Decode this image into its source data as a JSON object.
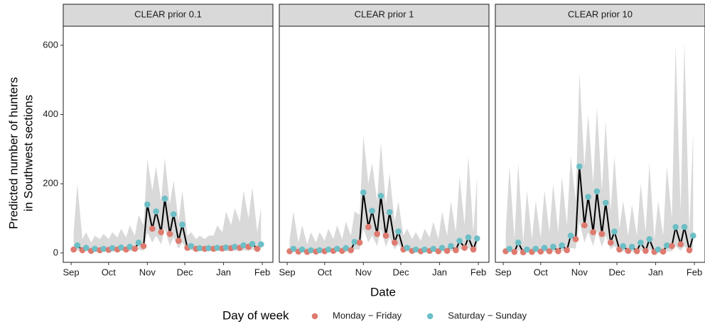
{
  "chart_data": {
    "type": "line",
    "xlabel": "Date",
    "ylabel": [
      "Predicted number of hunters",
      "in Southwest sections"
    ],
    "legend_title": "Day of week",
    "series": [
      {
        "name": "Monday − Friday",
        "color": "#de7a6f"
      },
      {
        "name": "Saturday − Sunday",
        "color": "#6cbfc6"
      }
    ],
    "line_color": "#000000",
    "band_color": "#d9d9d9",
    "xlim": [
      -6.3,
      161.5
    ],
    "ylim": [
      -27,
      655
    ],
    "xticks": [
      {
        "value": 0,
        "label": "Sep"
      },
      {
        "value": 30,
        "label": "Oct"
      },
      {
        "value": 61,
        "label": "Nov"
      },
      {
        "value": 91,
        "label": "Dec"
      },
      {
        "value": 122,
        "label": "Jan"
      },
      {
        "value": 153,
        "label": "Feb"
      }
    ],
    "yticks": [
      0,
      200,
      400,
      600
    ],
    "x": [
      2,
      5,
      9,
      12,
      16,
      19,
      23,
      26,
      30,
      33,
      37,
      40,
      44,
      47,
      51,
      54,
      58,
      61,
      65,
      68,
      72,
      75,
      79,
      82,
      86,
      89,
      93,
      96,
      100,
      103,
      107,
      110,
      114,
      117,
      121,
      124,
      128,
      131,
      135,
      138,
      142,
      145,
      149,
      152
    ],
    "day_type": [
      0,
      1,
      0,
      1,
      0,
      1,
      0,
      1,
      0,
      1,
      0,
      1,
      0,
      1,
      0,
      1,
      0,
      1,
      0,
      1,
      0,
      1,
      0,
      1,
      0,
      1,
      0,
      1,
      0,
      1,
      0,
      1,
      0,
      1,
      0,
      1,
      0,
      1,
      0,
      1,
      0,
      1,
      0,
      1
    ],
    "panels": [
      {
        "title": "CLEAR prior 0.1",
        "values": [
          10,
          22,
          8,
          15,
          6,
          12,
          8,
          12,
          9,
          14,
          10,
          16,
          10,
          18,
          12,
          30,
          20,
          140,
          70,
          120,
          60,
          157,
          55,
          112,
          35,
          82,
          15,
          20,
          12,
          14,
          12,
          14,
          12,
          15,
          13,
          16,
          14,
          18,
          15,
          22,
          18,
          26,
          12,
          25
        ],
        "lower": [
          3,
          8,
          2,
          5,
          1,
          4,
          2,
          4,
          3,
          5,
          3,
          6,
          3,
          6,
          4,
          10,
          6,
          60,
          30,
          50,
          25,
          70,
          20,
          45,
          12,
          30,
          5,
          8,
          4,
          6,
          4,
          6,
          4,
          6,
          4,
          6,
          5,
          7,
          5,
          8,
          6,
          10,
          4,
          9
        ],
        "upper": [
          60,
          200,
          40,
          60,
          30,
          50,
          40,
          55,
          40,
          60,
          45,
          70,
          45,
          80,
          50,
          110,
          80,
          270,
          180,
          250,
          150,
          275,
          140,
          210,
          90,
          180,
          50,
          60,
          40,
          50,
          40,
          50,
          50,
          80,
          60,
          120,
          80,
          130,
          90,
          180,
          100,
          190,
          60,
          130
        ]
      },
      {
        "title": "CLEAR prior 1",
        "values": [
          5,
          12,
          4,
          10,
          3,
          8,
          4,
          8,
          5,
          10,
          6,
          12,
          6,
          14,
          8,
          32,
          30,
          175,
          75,
          122,
          55,
          165,
          50,
          118,
          30,
          62,
          10,
          15,
          6,
          10,
          5,
          10,
          6,
          12,
          5,
          15,
          6,
          20,
          8,
          35,
          15,
          45,
          10,
          42
        ],
        "lower": [
          1,
          4,
          1,
          3,
          1,
          2,
          1,
          2,
          1,
          3,
          2,
          4,
          2,
          4,
          2,
          10,
          10,
          70,
          30,
          50,
          20,
          70,
          18,
          45,
          10,
          25,
          3,
          5,
          2,
          3,
          1,
          3,
          2,
          4,
          1,
          5,
          2,
          6,
          2,
          12,
          5,
          15,
          3,
          14
        ],
        "upper": [
          40,
          120,
          30,
          80,
          25,
          60,
          30,
          60,
          35,
          70,
          40,
          80,
          40,
          90,
          50,
          120,
          110,
          340,
          200,
          260,
          150,
          320,
          140,
          230,
          90,
          150,
          50,
          70,
          40,
          60,
          35,
          70,
          45,
          90,
          40,
          120,
          50,
          150,
          60,
          220,
          80,
          280,
          60,
          220
        ]
      },
      {
        "title": "CLEAR prior 10",
        "values": [
          5,
          12,
          3,
          30,
          2,
          10,
          3,
          12,
          4,
          15,
          5,
          18,
          5,
          22,
          8,
          50,
          40,
          250,
          80,
          162,
          60,
          178,
          55,
          145,
          30,
          62,
          10,
          20,
          6,
          18,
          5,
          30,
          6,
          40,
          3,
          10,
          4,
          22,
          20,
          75,
          25,
          75,
          8,
          50
        ],
        "lower": [
          1,
          3,
          1,
          8,
          0,
          2,
          1,
          3,
          1,
          4,
          1,
          5,
          1,
          6,
          2,
          15,
          12,
          90,
          30,
          60,
          20,
          65,
          18,
          50,
          10,
          20,
          3,
          5,
          2,
          4,
          1,
          8,
          2,
          10,
          1,
          2,
          1,
          5,
          5,
          20,
          6,
          20,
          2,
          12
        ],
        "upper": [
          60,
          250,
          40,
          260,
          30,
          180,
          40,
          150,
          45,
          180,
          60,
          200,
          60,
          220,
          80,
          280,
          150,
          520,
          250,
          400,
          200,
          420,
          180,
          380,
          120,
          280,
          70,
          150,
          50,
          140,
          50,
          200,
          60,
          260,
          40,
          150,
          50,
          250,
          100,
          600,
          120,
          610,
          60,
          350
        ]
      }
    ]
  }
}
